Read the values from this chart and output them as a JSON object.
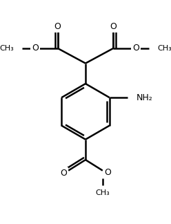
{
  "bg": "#ffffff",
  "lc": "#000000",
  "lw": 1.8,
  "fig_w": 2.48,
  "fig_h": 3.24,
  "dpi": 100,
  "xlim": [
    0,
    248
  ],
  "ylim": [
    0,
    324
  ]
}
